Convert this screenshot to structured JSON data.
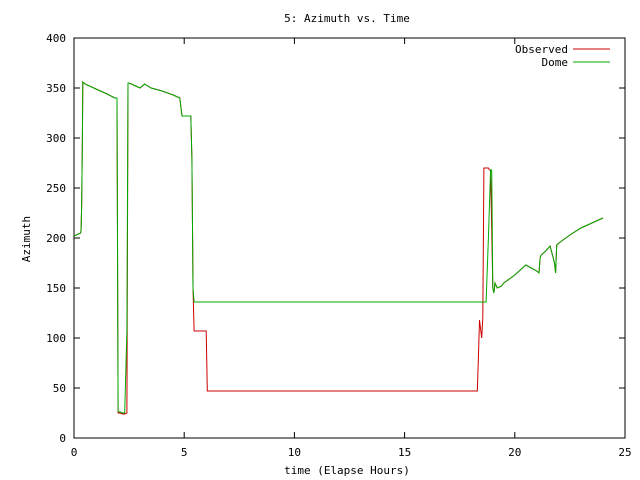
{
  "chart_data": {
    "type": "line",
    "title": "5: Azimuth vs. Time",
    "xlabel": "time (Elapse Hours)",
    "ylabel": "Azimuth",
    "xlim": [
      0,
      25
    ],
    "ylim": [
      0,
      400
    ],
    "xticks": [
      0,
      5,
      10,
      15,
      20,
      25
    ],
    "yticks": [
      0,
      50,
      100,
      150,
      200,
      250,
      300,
      350,
      400
    ],
    "legend": "top-right",
    "grid": false,
    "series": [
      {
        "name": "Observed",
        "color": "#cc0000",
        "x": [
          0.0,
          0.3,
          0.32,
          0.35,
          0.38,
          0.4,
          0.5,
          1.0,
          1.5,
          1.85,
          1.95,
          2.0,
          2.05,
          2.1,
          2.2,
          2.3,
          2.4,
          2.45,
          2.5,
          2.8,
          3.0,
          3.2,
          3.5,
          4.0,
          4.5,
          4.8,
          4.9,
          5.0,
          5.3,
          5.35,
          5.38,
          5.4,
          5.45,
          5.5,
          6.0,
          6.05,
          10.0,
          15.0,
          18.2,
          18.3,
          18.35,
          18.4,
          18.5,
          18.55,
          18.6,
          18.7,
          18.8,
          18.85,
          18.9,
          19.0,
          19.05,
          19.1,
          19.2,
          19.4,
          19.5,
          20.0,
          20.5,
          21.0,
          21.1,
          21.15,
          21.2,
          21.4,
          21.6,
          21.8,
          21.85,
          21.9,
          22.0,
          22.5,
          23.0,
          23.5,
          24.0
        ],
        "y": [
          202,
          205,
          208,
          235,
          300,
          356,
          354,
          349,
          344,
          340,
          340,
          25,
          25,
          25,
          24,
          24,
          25,
          355,
          355,
          352,
          350,
          354,
          350,
          347,
          343,
          340,
          322,
          322,
          322,
          280,
          200,
          150,
          107,
          107,
          107,
          47,
          47,
          47,
          47,
          47,
          80,
          118,
          100,
          120,
          270,
          270,
          270,
          268,
          268,
          150,
          145,
          155,
          150,
          152,
          155,
          163,
          173,
          167,
          165,
          180,
          183,
          187,
          192,
          175,
          165,
          193,
          195,
          203,
          210,
          215,
          220
        ]
      },
      {
        "name": "Dome",
        "color": "#00aa00",
        "x": [
          0.0,
          0.3,
          0.32,
          0.35,
          0.38,
          0.4,
          0.5,
          1.0,
          1.5,
          1.85,
          1.95,
          2.0,
          2.05,
          2.1,
          2.2,
          2.3,
          2.4,
          2.45,
          2.5,
          2.8,
          3.0,
          3.2,
          3.5,
          4.0,
          4.5,
          4.8,
          4.9,
          5.0,
          5.3,
          5.35,
          5.38,
          5.4,
          5.45,
          5.5,
          10.0,
          15.0,
          18.5,
          18.7,
          18.8,
          18.9,
          18.95,
          19.0,
          19.05,
          19.1,
          19.2,
          19.4,
          19.5,
          20.0,
          20.5,
          21.0,
          21.1,
          21.15,
          21.2,
          21.4,
          21.6,
          21.8,
          21.85,
          21.9,
          22.0,
          22.5,
          23.0,
          23.5,
          24.0
        ],
        "y": [
          202,
          205,
          208,
          235,
          300,
          356,
          354,
          349,
          344,
          340,
          340,
          27,
          26,
          26,
          25,
          25,
          108,
          355,
          355,
          352,
          350,
          354,
          350,
          347,
          343,
          340,
          322,
          322,
          322,
          280,
          200,
          150,
          136,
          136,
          136,
          136,
          136,
          136,
          200,
          268,
          268,
          150,
          145,
          155,
          150,
          152,
          155,
          163,
          173,
          167,
          165,
          180,
          183,
          187,
          192,
          175,
          165,
          193,
          195,
          203,
          210,
          215,
          220
        ]
      }
    ]
  }
}
